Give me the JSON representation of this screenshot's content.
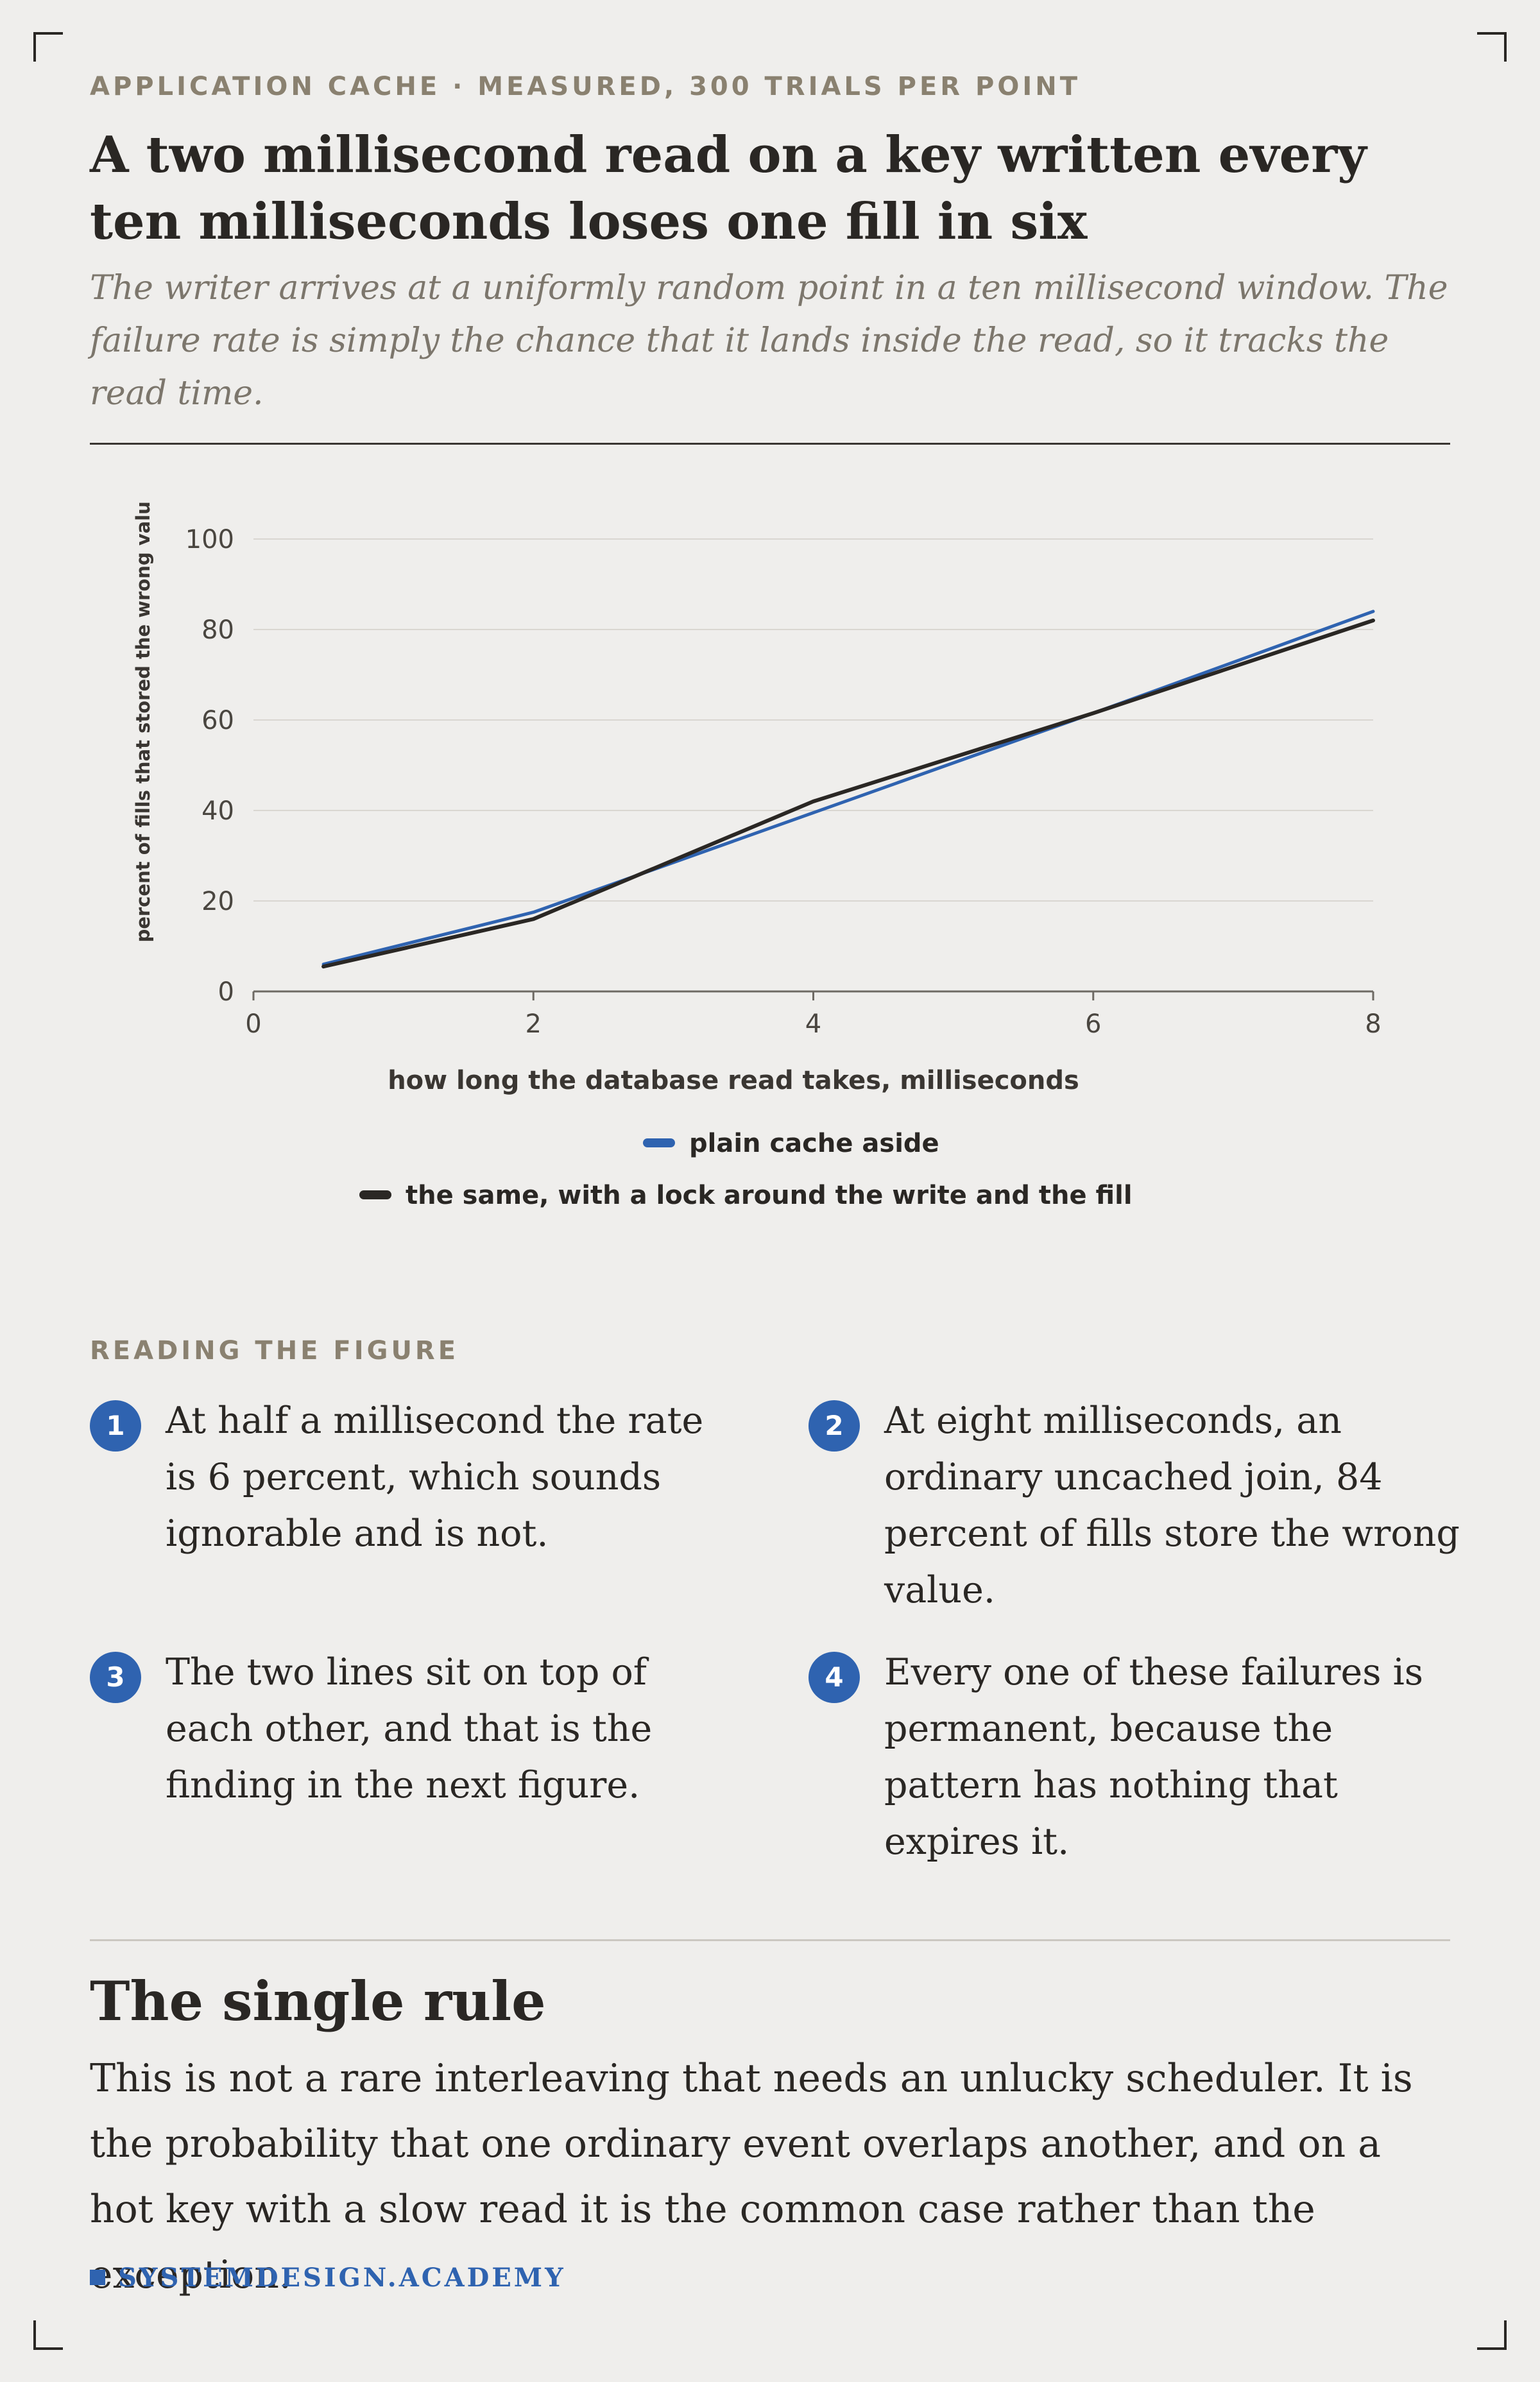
{
  "header": {
    "kicker": "APPLICATION CACHE · MEASURED, 300 TRIALS PER POINT",
    "title": "A two millisecond read on a key written every ten milliseconds loses one fill in six",
    "subtitle": "The writer arrives at a uniformly random point in a ten millisecond window. The failure rate is simply the chance that it lands inside the read, so it tracks the read time."
  },
  "chart_data": {
    "type": "line",
    "title": "",
    "xlabel": "how long the database read takes, milliseconds",
    "ylabel": "percent of fills that stored the wrong value",
    "xlim": [
      0,
      8
    ],
    "ylim": [
      0,
      100
    ],
    "xticks": [
      0,
      2,
      4,
      6,
      8
    ],
    "yticks": [
      0,
      20,
      40,
      60,
      80,
      100
    ],
    "grid": "horizontal",
    "legend_position": "bottom",
    "x": [
      0.5,
      2,
      4,
      6,
      8
    ],
    "series": [
      {
        "name": "plain cache aside",
        "values": [
          6,
          17.5,
          39.5,
          61.5,
          84
        ],
        "color": "#2f63b0"
      },
      {
        "name": "the same, with a lock around the write and the fill",
        "values": [
          5.5,
          16,
          42,
          61.5,
          82
        ],
        "color": "#2a2724"
      }
    ]
  },
  "reading": {
    "heading": "READING THE FIGURE",
    "notes": [
      {
        "num": "1",
        "text": "At half a millisecond the rate is 6 percent, which sounds ignorable and is not."
      },
      {
        "num": "2",
        "text": "At eight milliseconds, an ordinary uncached join, 84 percent of fills store the wrong value."
      },
      {
        "num": "3",
        "text": "The two lines sit on top of each other, and that is the finding in the next figure."
      },
      {
        "num": "4",
        "text": "Every one of these failures is permanent, because the pattern has nothing that expires it."
      }
    ]
  },
  "rule": {
    "heading": "The single rule",
    "body": "This is not a rare interleaving that needs an unlucky scheduler. It is the probability that one ordinary event overlaps another, and on a hot key with a slow read it is the common case rather than the exception."
  },
  "brand": "SYSTEMDESIGN.ACADEMY"
}
